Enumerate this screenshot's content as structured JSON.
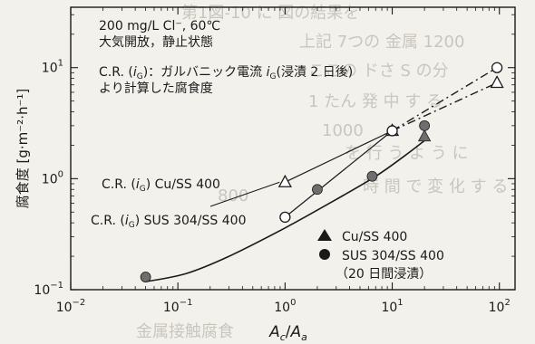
{
  "background_text": [
    "第1図-10 に 図の結果を",
    "上記 7つの 金属 1200",
    "ここの ドさ S の分",
    "1 たん 発 中 す る",
    "1000",
    "を 行 う よ う に",
    "時 間 で 変 化 す る",
    "800",
    "金属接触腐食"
  ],
  "colors": {
    "ink": "#1a1a1a",
    "paper": "#f3f1ec",
    "background_text": "#c9c6be",
    "marker_gray": "#6e6e6e"
  },
  "chart_data": {
    "type": "scatter",
    "title": "",
    "xlabel_main": "A",
    "xlabel_sub1": "c",
    "xlabel_slash": "/",
    "xlabel_sub2": "a",
    "ylabel": "腐食度 [g·m⁻²·h⁻¹]",
    "x_scale": "log",
    "y_scale": "log",
    "xlim": [
      0.01,
      140
    ],
    "ylim": [
      0.1,
      35
    ],
    "x_ticks": [
      {
        "value": 0.01,
        "base": "10",
        "exp": "−2"
      },
      {
        "value": 0.1,
        "base": "10",
        "exp": "−1"
      },
      {
        "value": 1,
        "base": "10",
        "exp": "0"
      },
      {
        "value": 10,
        "base": "10",
        "exp": "1"
      },
      {
        "value": 100,
        "base": "10",
        "exp": "2"
      }
    ],
    "y_ticks": [
      {
        "value": 0.1,
        "base": "10",
        "exp": "−1"
      },
      {
        "value": 1,
        "base": "10",
        "exp": "0"
      },
      {
        "value": 10,
        "base": "10",
        "exp": "1"
      }
    ],
    "grid": false,
    "conditions_line1": "200 mg/L Cl⁻, 60℃",
    "conditions_line2": "大気開放，静止状態",
    "cr_line1_prefix": "C.R. (",
    "cr_line1_i": "i",
    "cr_line1_sub": "G",
    "cr_line1_suffix": ")：ガルバニック電流 ",
    "cr_line1_i2": "i",
    "cr_line1_sub2": "G",
    "cr_line1_tail": "(浸漬 2 日後)",
    "cr_line2": "より計算した腐食度",
    "series": [
      {
        "name": "Cu/SS 400",
        "kind": "measured",
        "marker": "filled-triangle",
        "color": "#6e6e6e",
        "x": [
          20
        ],
        "y": [
          2.4
        ]
      },
      {
        "name": "SUS 304/SS 400",
        "name_note": "（20 日間浸漬）",
        "kind": "measured",
        "marker": "filled-circle",
        "color": "#6e6e6e",
        "x": [
          0.05,
          2,
          6.5,
          20
        ],
        "y": [
          0.13,
          0.8,
          1.05,
          3.0
        ]
      },
      {
        "name": "C.R. (iG) Cu/SS 400",
        "label_prefix": "C.R. (",
        "label_i": "i",
        "label_sub": "G",
        "label_suffix": ") Cu/SS 400",
        "kind": "calculated",
        "marker": "open-triangle",
        "x": [
          1,
          10,
          95
        ],
        "y": [
          0.93,
          2.7,
          7.3
        ]
      },
      {
        "name": "C.R. (iG) SUS 304/SS 400",
        "label_prefix": "C.R. (",
        "label_i": "i",
        "label_sub": "G",
        "label_suffix": ") SUS 304/SS 400",
        "kind": "calculated",
        "marker": "open-circle",
        "x": [
          1,
          10,
          95
        ],
        "y": [
          0.45,
          2.7,
          10
        ]
      }
    ],
    "trend_curve": {
      "x": [
        0.05,
        0.12,
        0.3,
        1,
        3,
        7,
        13,
        20
      ],
      "y": [
        0.118,
        0.14,
        0.2,
        0.36,
        0.65,
        1.05,
        1.6,
        2.2
      ]
    },
    "legend": {
      "placement": "bottom-right",
      "entries": [
        {
          "marker": "filled-triangle",
          "label": "Cu/SS 400"
        },
        {
          "marker": "filled-circle",
          "label": "SUS 304/SS 400"
        },
        {
          "marker": "none",
          "label": "（20 日間浸漬）"
        }
      ]
    }
  }
}
